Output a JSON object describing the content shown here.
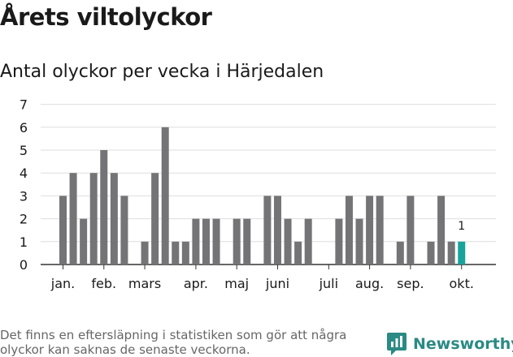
{
  "title": "Årets viltolyckor",
  "subtitle": "Antal olyckor per vecka i Härjedalen",
  "footnote": "Det finns en eftersläpning i statistiken som gör att några olyckor kan saknas de senaste veckorna.",
  "brand": "Newsworthy",
  "colors": {
    "bar": "#747477",
    "highlight": "#18a39b",
    "grid": "#dedede",
    "brand": "#2a8a84"
  },
  "chart_data": {
    "type": "bar",
    "ylim": [
      0,
      7
    ],
    "yticks": [
      0,
      1,
      2,
      3,
      4,
      5,
      6,
      7
    ],
    "x_is_week_index": true,
    "xticks": [
      {
        "label": "jan.",
        "week": 1.5
      },
      {
        "label": "feb.",
        "week": 5.5
      },
      {
        "label": "mars",
        "week": 9.5
      },
      {
        "label": "apr.",
        "week": 14.5
      },
      {
        "label": "maj",
        "week": 18.5
      },
      {
        "label": "juni",
        "week": 22.5
      },
      {
        "label": "juli",
        "week": 27.5
      },
      {
        "label": "aug.",
        "week": 31.5
      },
      {
        "label": "sep.",
        "week": 35.5
      },
      {
        "label": "okt.",
        "week": 40.5
      }
    ],
    "values": [
      3,
      4,
      2,
      4,
      5,
      4,
      3,
      0,
      1,
      4,
      6,
      1,
      1,
      2,
      2,
      2,
      0,
      2,
      2,
      0,
      3,
      3,
      2,
      1,
      2,
      0,
      0,
      2,
      3,
      2,
      3,
      3,
      0,
      1,
      3,
      0,
      1,
      3,
      1,
      1
    ],
    "highlight_index": 39,
    "highlight_label": "1"
  }
}
